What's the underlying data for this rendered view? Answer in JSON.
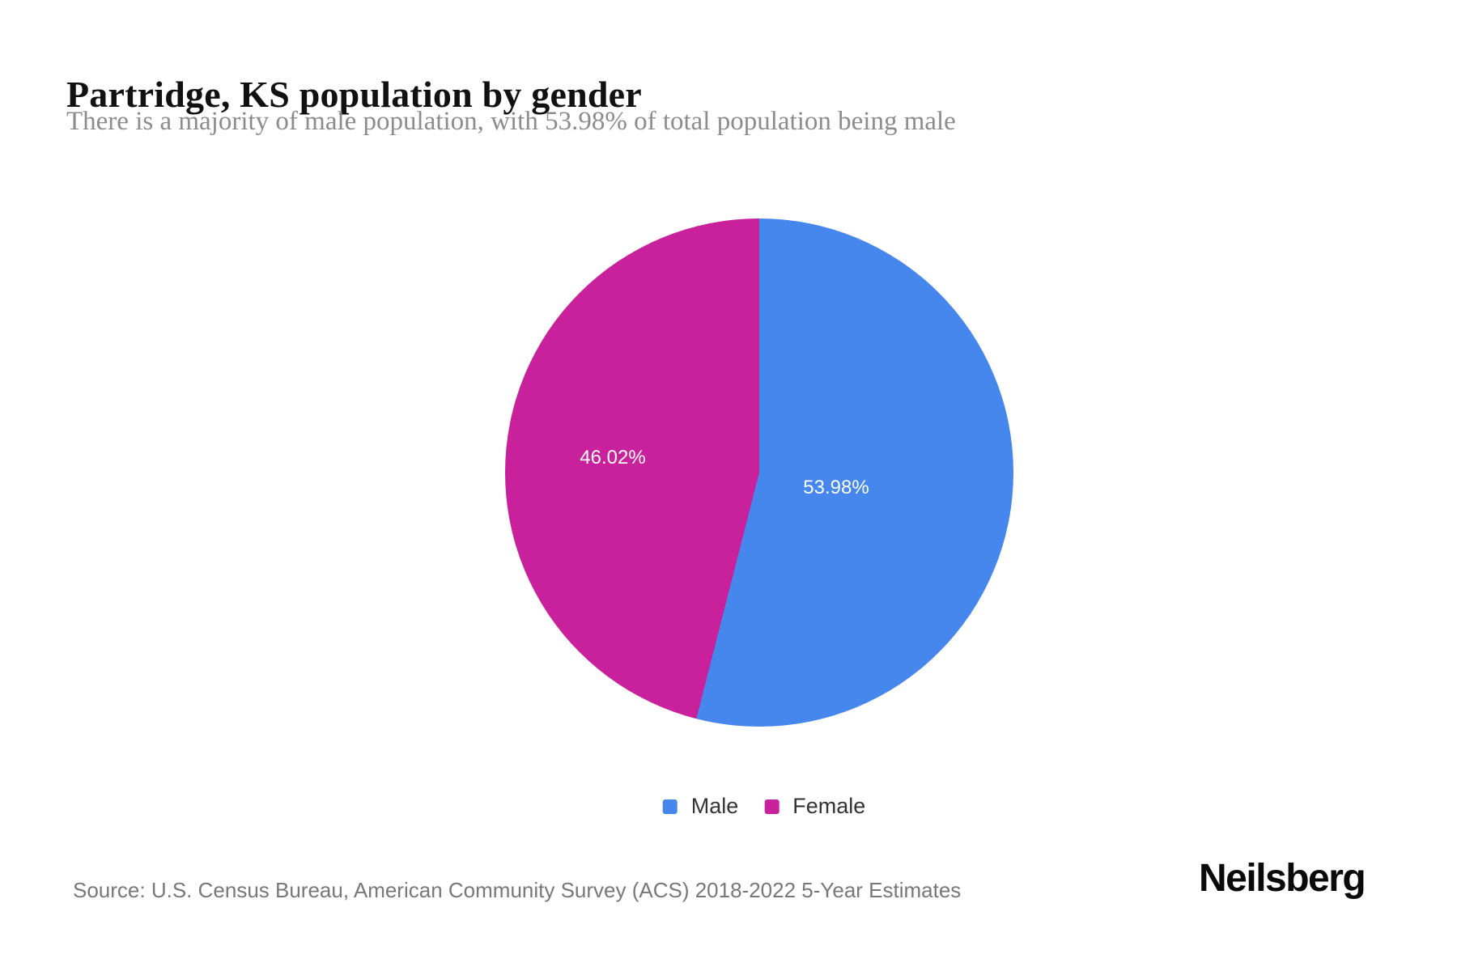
{
  "page": {
    "title": "Partridge, KS population by gender",
    "subtitle": "There is a majority of male population, with 53.98% of total population being male",
    "source": "Source: U.S. Census Bureau, American Community Survey (ACS) 2018-2022 5-Year Estimates",
    "brand": "Neilsberg"
  },
  "chart_data": {
    "type": "pie",
    "title": "Partridge, KS population by gender",
    "categories": [
      "Male",
      "Female"
    ],
    "values": [
      53.98,
      46.02
    ],
    "unit": "%",
    "slice_labels": [
      "53.98%",
      "46.02%"
    ],
    "colors": {
      "male": "#4687EE",
      "female": "#C9219C"
    },
    "label_color": "#ffffff",
    "start_angle_deg": 0,
    "direction": "clockwise",
    "legend_position": "bottom"
  }
}
